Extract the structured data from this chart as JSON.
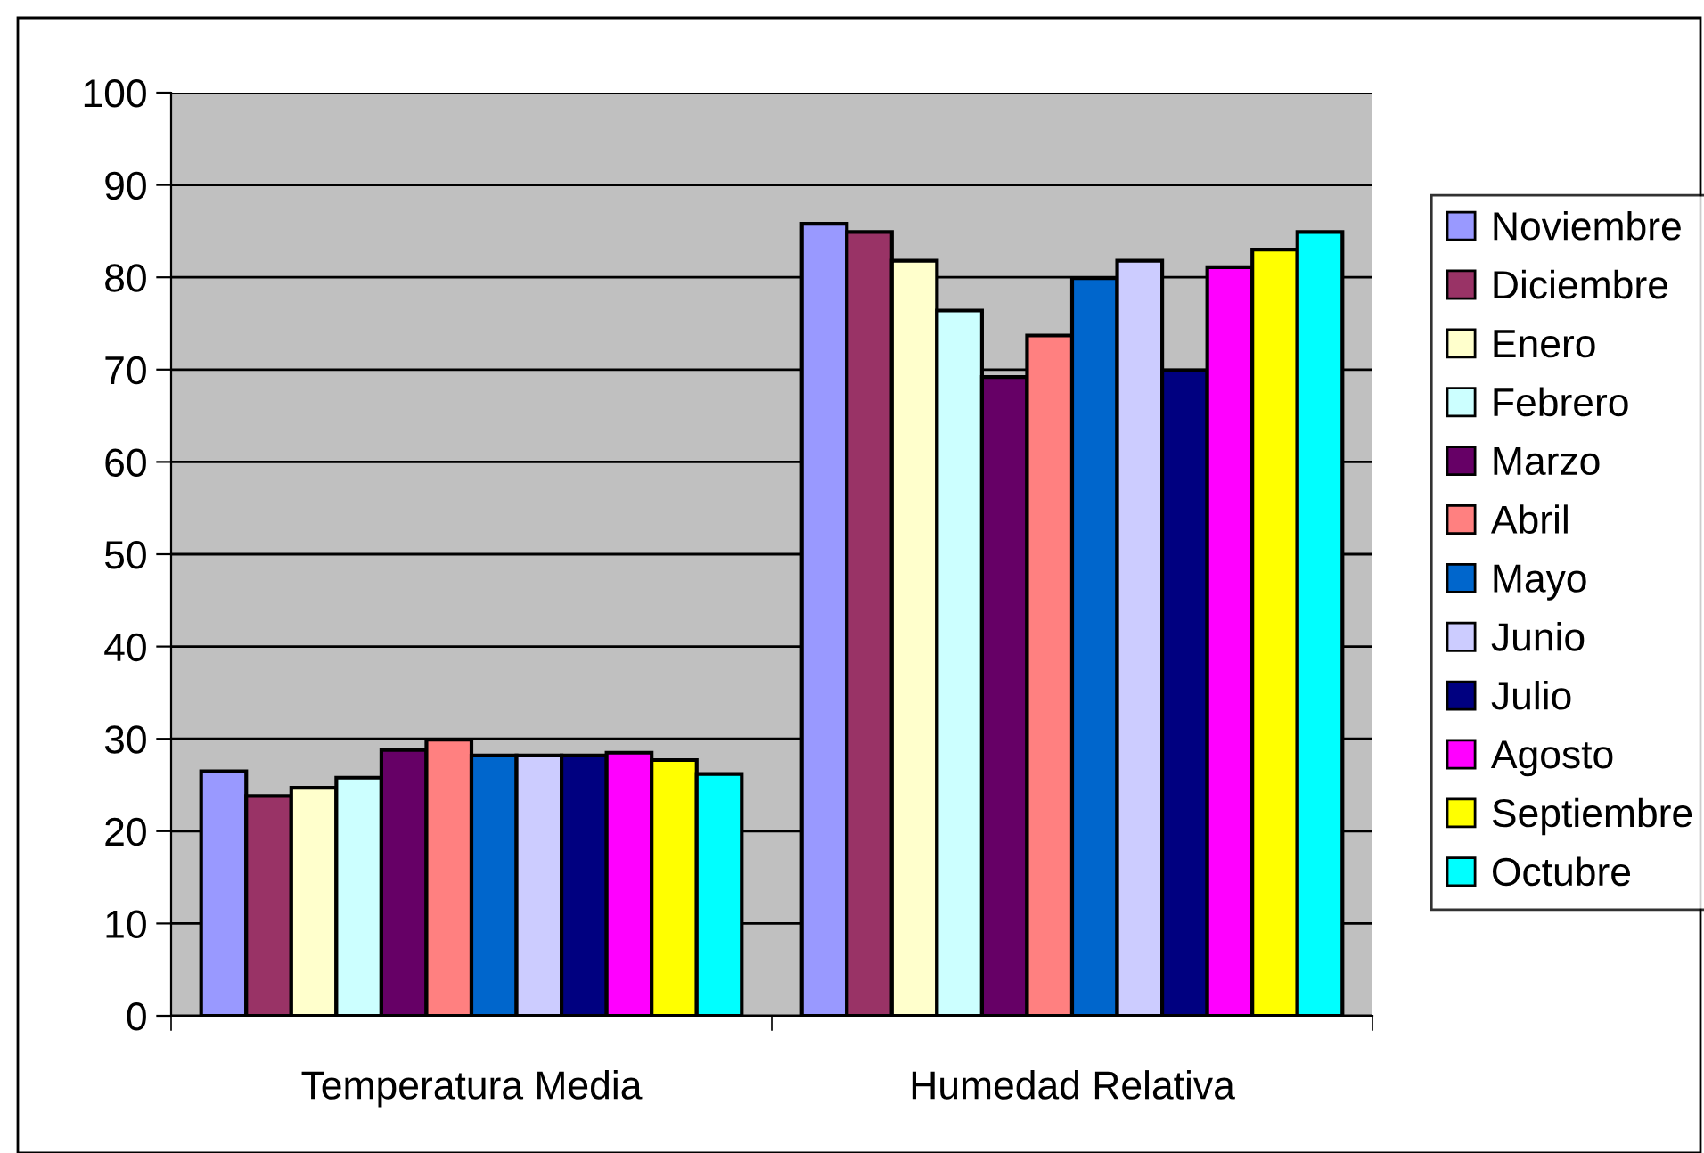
{
  "chart_data": {
    "type": "bar",
    "categories": [
      "Temperatura Media",
      "Humedad Relativa"
    ],
    "series": [
      {
        "name": "Noviembre",
        "color": "#9999ff",
        "values": [
          26.5,
          85.8
        ]
      },
      {
        "name": "Diciembre",
        "color": "#993366",
        "values": [
          23.8,
          84.9
        ]
      },
      {
        "name": "Enero",
        "color": "#ffffcc",
        "values": [
          24.7,
          81.8
        ]
      },
      {
        "name": "Febrero",
        "color": "#ccffff",
        "values": [
          25.8,
          76.4
        ]
      },
      {
        "name": "Marzo",
        "color": "#660066",
        "values": [
          28.8,
          69.2
        ]
      },
      {
        "name": "Abril",
        "color": "#ff8080",
        "values": [
          29.9,
          73.7
        ]
      },
      {
        "name": "Mayo",
        "color": "#0066cc",
        "values": [
          28.2,
          79.9
        ]
      },
      {
        "name": "Junio",
        "color": "#ccccff",
        "values": [
          28.2,
          81.8
        ]
      },
      {
        "name": "Julio",
        "color": "#000080",
        "values": [
          28.2,
          69.9
        ]
      },
      {
        "name": "Agosto",
        "color": "#ff00ff",
        "values": [
          28.5,
          81.1
        ]
      },
      {
        "name": "Septiembre",
        "color": "#ffff00",
        "values": [
          27.7,
          83.0
        ]
      },
      {
        "name": "Octubre",
        "color": "#00ffff",
        "values": [
          26.2,
          84.9
        ]
      }
    ],
    "ylim": [
      0,
      100
    ],
    "yticks": [
      0,
      10,
      20,
      30,
      40,
      50,
      60,
      70,
      80,
      90,
      100
    ],
    "grid": "y",
    "legend": "right"
  }
}
